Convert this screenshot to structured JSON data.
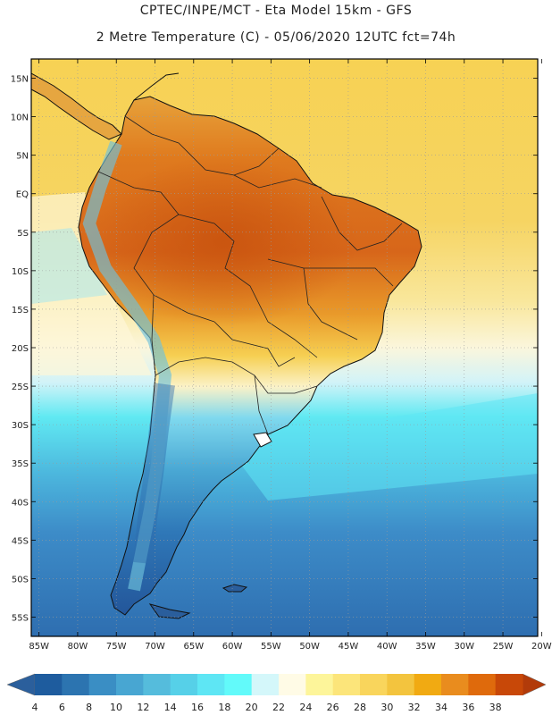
{
  "header": {
    "title_line1": "CPTEC/INPE/MCT -  Eta Model 15km - GFS",
    "title_line2": "2 Metre Temperature (C) - 05/06/2020 12UTC fct=74h"
  },
  "map": {
    "region": "South America",
    "lat_labels": [
      "15N",
      "10N",
      "5N",
      "EQ",
      "5S",
      "10S",
      "15S",
      "20S",
      "25S",
      "30S",
      "35S",
      "40S",
      "45S",
      "50S",
      "55S"
    ],
    "lat_values": [
      15,
      10,
      5,
      0,
      -5,
      -10,
      -15,
      -20,
      -25,
      -30,
      -35,
      -40,
      -45,
      -50,
      -55
    ],
    "lon_labels": [
      "85W",
      "80W",
      "75W",
      "70W",
      "65W",
      "60W",
      "55W",
      "50W",
      "45W",
      "40W",
      "35W",
      "30W",
      "25W",
      "20W"
    ],
    "lon_values": [
      -85,
      -80,
      -75,
      -70,
      -65,
      -60,
      -55,
      -50,
      -45,
      -40,
      -35,
      -30,
      -25,
      -20
    ],
    "lat_range": [
      -57.5,
      17.5
    ],
    "lon_range": [
      -86,
      -20.5
    ]
  },
  "colorbar": {
    "labels": [
      "4",
      "6",
      "8",
      "10",
      "12",
      "14",
      "16",
      "18",
      "20",
      "22",
      "24",
      "26",
      "28",
      "30",
      "32",
      "34",
      "36",
      "38"
    ],
    "colors": [
      "#1e5c9e",
      "#2c74b0",
      "#3a8ec4",
      "#48a6d2",
      "#55bcdc",
      "#56d0e8",
      "#5ee6f4",
      "#62fafa",
      "#d4f7fa",
      "#fffbe6",
      "#fdf59a",
      "#fce57a",
      "#f9d55c",
      "#f3c43e",
      "#f1aa12",
      "#e98c1e",
      "#df6a0c",
      "#c84808"
    ],
    "low_arrow_color": "#2b5f9c",
    "high_arrow_color": "#b23b0a"
  }
}
